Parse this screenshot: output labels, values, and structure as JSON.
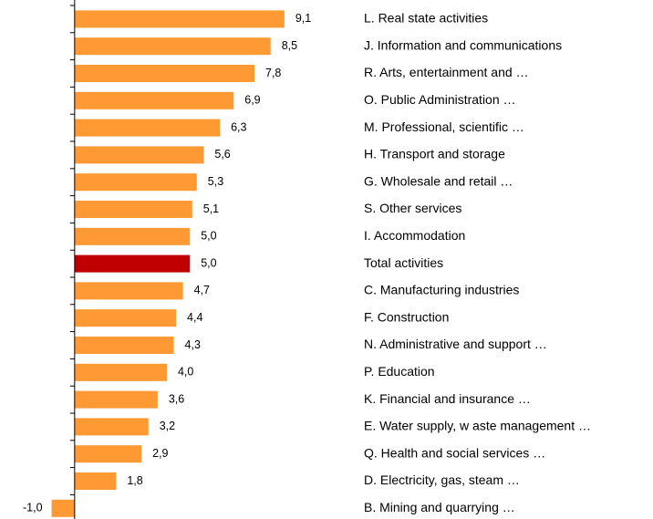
{
  "chart_data": {
    "type": "barh",
    "categories": [
      "L. Real state activities",
      "J. Information and communications",
      "R. Arts, entertainment and …",
      "O. Public Administration …",
      "M. Professional, scientific …",
      "H. Transport and storage",
      "G. Wholesale and retail …",
      "S. Other services",
      "I. Accommodation",
      "Total activities",
      "C. Manufacturing industries",
      "F. Construction",
      "N. Administrative and support …",
      "P. Education",
      "K. Financial and insurance …",
      "E. Water supply, w aste management …",
      "Q. Health and social services …",
      "D. Electricity, gas, steam …",
      "B. Mining and quarrying …"
    ],
    "values": [
      9.1,
      8.5,
      7.8,
      6.9,
      6.3,
      5.6,
      5.3,
      5.1,
      5.0,
      5.0,
      4.7,
      4.4,
      4.3,
      4.0,
      3.6,
      3.2,
      2.9,
      1.8,
      -1.0
    ],
    "value_labels": [
      "9,1",
      "8,5",
      "7,8",
      "6,9",
      "6,3",
      "5,6",
      "5,3",
      "5,1",
      "5,0",
      "5,0",
      "4,7",
      "4,4",
      "4,3",
      "4,0",
      "3,6",
      "3,2",
      "2,9",
      "1,8",
      "-1,0"
    ],
    "colors": [
      "#ff9933",
      "#ff9933",
      "#ff9933",
      "#ff9933",
      "#ff9933",
      "#ff9933",
      "#ff9933",
      "#ff9933",
      "#ff9933",
      "#c00000",
      "#ff9933",
      "#ff9933",
      "#ff9933",
      "#ff9933",
      "#ff9933",
      "#ff9933",
      "#ff9933",
      "#ff9933",
      "#ff9933"
    ],
    "xlim": [
      -3,
      15
    ]
  }
}
